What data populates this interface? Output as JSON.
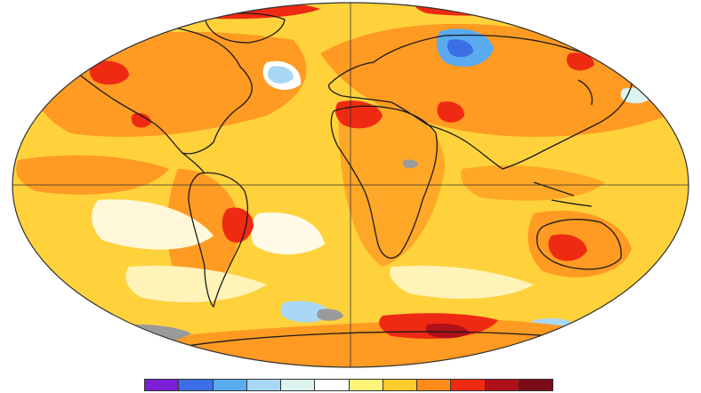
{
  "map": {
    "projection": "robinson",
    "ocean_base_color": "#ffd23c",
    "land_outline_color": "#1a1a1a",
    "grid_lines": true
  },
  "legend": {
    "colors": [
      "#7a1fd6",
      "#3c6ee6",
      "#5aaaf0",
      "#a8d8f5",
      "#dcf3ef",
      "#ffffff",
      "#fff37a",
      "#ffcc2e",
      "#ff8c1a",
      "#ef2a12",
      "#b0101a",
      "#7a0a18"
    ]
  }
}
